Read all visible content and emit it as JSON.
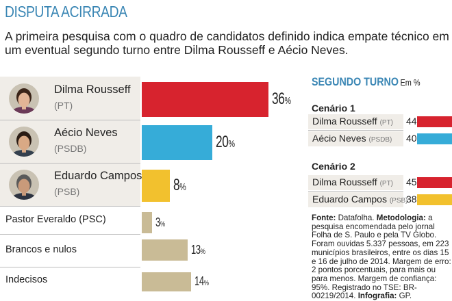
{
  "header": {
    "kicker": "DISPUTA ACIRRADA",
    "deck": "A primeira pesquisa com o quadro de candidatos definido indica empate técnico em um eventual segundo turno entre Dilma Rousseff e Aécio Neves."
  },
  "chart_data": [
    {
      "type": "bar",
      "orientation": "horizontal",
      "title": "",
      "unit": "%",
      "categories": [
        "Dilma Rousseff (PT)",
        "Aécio Neves (PSDB)",
        "Eduardo Campos (PSB)",
        "Pastor Everaldo (PSC)",
        "Brancos e nulos",
        "Indecisos"
      ],
      "values": [
        36,
        20,
        8,
        3,
        13,
        14
      ],
      "colors": [
        "#d7232e",
        "#36acd8",
        "#f2c12e",
        "#c9bb96",
        "#c9bb96",
        "#c9bb96"
      ],
      "rows": [
        {
          "name": "Dilma Rousseff",
          "party": "(PT)",
          "value": 36,
          "label": "36",
          "color": "#d7232e",
          "photo": "dilma-photo"
        },
        {
          "name": "Aécio Neves",
          "party": "(PSDB)",
          "value": 20,
          "label": "20",
          "color": "#36acd8",
          "photo": "aecio-photo"
        },
        {
          "name": "Eduardo Campos",
          "party": "(PSB)",
          "value": 8,
          "label": "8",
          "color": "#f2c12e",
          "photo": "campos-photo"
        },
        {
          "name": "Pastor Everaldo (PSC)",
          "value": 3,
          "label": "3",
          "color": "#c9bb96"
        },
        {
          "name": "Brancos e nulos",
          "value": 13,
          "label": "13",
          "color": "#c9bb96"
        },
        {
          "name": "Indecisos",
          "value": 14,
          "label": "14",
          "color": "#c9bb96"
        }
      ],
      "pct_symbol": "%",
      "xlim": [
        0,
        36
      ]
    },
    {
      "type": "bar",
      "orientation": "horizontal",
      "title": "SEGUNDO TURNO",
      "unit_label": "Em %",
      "xlim": [
        0,
        45
      ],
      "scenarios": [
        {
          "title": "Cenário 1",
          "rows": [
            {
              "name": "Dilma Rousseff",
              "party": "(PT)",
              "value": 44,
              "label": "44",
              "color": "#d7232e"
            },
            {
              "name": "Aécio Neves",
              "party": "(PSDB)",
              "value": 40,
              "label": "40",
              "color": "#36acd8"
            }
          ]
        },
        {
          "title": "Cenário 2",
          "rows": [
            {
              "name": "Dilma Rousseff",
              "party": "(PT)",
              "value": 45,
              "label": "45",
              "color": "#d7232e"
            },
            {
              "name": "Eduardo Campos",
              "party": "(PSB)",
              "value": 38,
              "label": "38",
              "color": "#f2c12e"
            }
          ]
        }
      ]
    }
  ],
  "source": {
    "fonte_label": "Fonte:",
    "fonte_text": " Datafolha. ",
    "metodologia_label": "Metodologia:",
    "metodologia_text": " a pesquisa encomendada pelo jornal Folha de S. Paulo e pela TV Globo. Foram ouvidas 5.337 pessoas, em 223 municípios brasileiros, entre os dias 15 e 16 de julho de 2014. Margem de erro: 2 pontos porcentuais, para mais ou para menos. Margem de confiança: 95%. Registrado no TSE: BR-00219/2014. ",
    "infografia_label": "Infografia:",
    "infografia_text": " GP."
  }
}
